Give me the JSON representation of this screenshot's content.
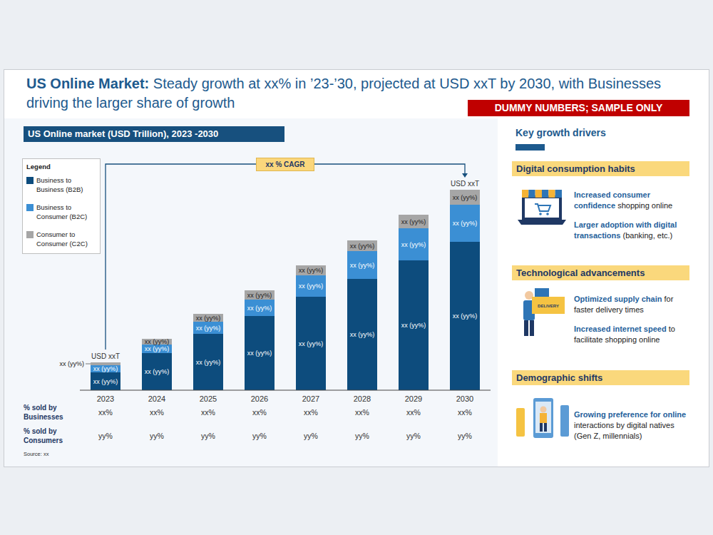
{
  "header": {
    "title_bold": "US Online Market:",
    "title_rest": "Steady growth at xx% in ’23-’30, projected at USD xxT by 2030, with Businesses driving the larger share of growth",
    "badge": "DUMMY NUMBERS; SAMPLE ONLY"
  },
  "chart_data": {
    "type": "bar",
    "stacked": true,
    "title": "US Online market (USD Trillion), 2023 -2030",
    "categories": [
      "2023",
      "2024",
      "2025",
      "2026",
      "2027",
      "2028",
      "2029",
      "2030"
    ],
    "series": [
      {
        "name": "Business to Business (B2B)",
        "color": "#0d4c7d",
        "values": [
          1.25,
          2.6,
          3.95,
          5.2,
          6.55,
          7.8,
          9.1,
          10.4
        ],
        "value_labels": [
          "xx (yy%)",
          "xx (yy%)",
          "xx (yy%)",
          "xx (yy%)",
          "xx (yy%)",
          "xx (yy%)",
          "xx (yy%)",
          "xx (yy%)"
        ]
      },
      {
        "name": "Business to Consumer (B2C)",
        "color": "#3b8fd4",
        "values": [
          0.5,
          0.6,
          0.85,
          1.15,
          1.5,
          1.95,
          2.25,
          2.6
        ],
        "value_labels": [
          "xx (yy%)",
          "xx (yy%)",
          "xx (yy%)",
          "xx (yy%)",
          "xx (yy%)",
          "xx (yy%)",
          "xx (yy%)",
          "xx (yy%)"
        ]
      },
      {
        "name": "Consumer to Consumer (C2C)",
        "color": "#a6a6a6",
        "values": [
          0.2,
          0.4,
          0.55,
          0.65,
          0.7,
          0.75,
          0.95,
          1.05
        ],
        "value_labels": [
          "xx (yy%)",
          "xx (yy%)",
          "xx (yy%)",
          "xx (yy%)",
          "xx (yy%)",
          "xx (yy%)",
          "xx (yy%)",
          "xx (yy%)"
        ]
      }
    ],
    "ylim": [
      0,
      15
    ],
    "yticks": [],
    "tick_labels": "x",
    "grid": false,
    "legend": "top-left",
    "legend_title": "Legend",
    "data_labels": true,
    "annotations": [
      {
        "category": "2023",
        "text": "USD xxT"
      },
      {
        "category": "2030",
        "text": "USD xxT"
      }
    ],
    "cagr_label": "xx % CAGR",
    "source": "Source: xx"
  },
  "table": {
    "rows": [
      {
        "label": "% sold by Businesses",
        "values": [
          "xx%",
          "xx%",
          "xx%",
          "xx%",
          "xx%",
          "xx%",
          "xx%",
          "xx%"
        ]
      },
      {
        "label": "% sold by Consumers",
        "values": [
          "yy%",
          "yy%",
          "yy%",
          "yy%",
          "yy%",
          "yy%",
          "yy%",
          "yy%"
        ]
      }
    ]
  },
  "drivers": {
    "title": "Key growth drivers",
    "sections": [
      {
        "heading": "Digital consumption habits",
        "items": [
          {
            "highlight": "Increased consumer confidence",
            "rest": "shopping online"
          },
          {
            "highlight": "Larger adoption with digital transactions",
            "rest": "(banking, etc.)"
          }
        ]
      },
      {
        "heading": "Technological advancements",
        "icon_text": "DELIVERY",
        "items": [
          {
            "highlight": "Optimized supply chain",
            "rest": "for faster delivery times"
          },
          {
            "highlight": "Increased internet speed",
            "rest": "to facilitate shopping online"
          }
        ]
      },
      {
        "heading": "Demographic shifts",
        "items": [
          {
            "highlight": "Growing preference for online",
            "rest": "interactions by digital natives (Gen Z, millennials)"
          }
        ]
      }
    ]
  }
}
